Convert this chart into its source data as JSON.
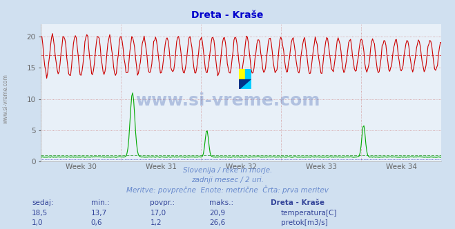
{
  "title": "Dreta - Kraše",
  "title_color": "#0000cc",
  "bg_color": "#d0e0f0",
  "plot_bg_color": "#e8f0f8",
  "grid_color": "#d09090",
  "temp_color": "#cc0000",
  "flow_color": "#00aa00",
  "avg_temp_color": "#cc0000",
  "avg_flow_color": "#008800",
  "flow_dot_color": "#0000aa",
  "ylim": [
    0,
    22
  ],
  "xlim": [
    0,
    35
  ],
  "yticks": [
    0,
    5,
    10,
    15,
    20
  ],
  "week_ticks": [
    3.5,
    10.5,
    17.5,
    24.5,
    31.5
  ],
  "week_labels": [
    "Week 30",
    "Week 31",
    "Week 32",
    "Week 33",
    "Week 34"
  ],
  "week_grid_positions": [
    0,
    7,
    14,
    21,
    28,
    35
  ],
  "temp_min": 13.7,
  "temp_max": 20.9,
  "temp_avg": 17.0,
  "flow_min": 0.6,
  "flow_max": 26.6,
  "flow_avg": 1.2,
  "flow_scale": 0.826,
  "watermark_text": "www.si-vreme.com",
  "watermark_color": "#3355aa",
  "watermark_alpha": 0.3,
  "watermark_size": 18,
  "logo_colors": [
    "#ffff00",
    "#00ccff",
    "#003388"
  ],
  "footer_color": "#6688cc",
  "footer_line1": "Slovenija / reke in morje.",
  "footer_line2": "zadnji mesec / 2 uri.",
  "footer_line3": "Meritve: povprečne  Enote: metrične  Črta: prva meritev",
  "table_header": [
    "sedaj:",
    "min.:",
    "povpr.:",
    "maks.:",
    "Dreta - Kraše"
  ],
  "table_row1": [
    "18,5",
    "13,7",
    "17,0",
    "20,9"
  ],
  "table_row2": [
    "1,0",
    "0,6",
    "1,2",
    "26,6"
  ],
  "table_color": "#334499",
  "legend_temp": "temperatura[C]",
  "legend_flow": "pretok[m3/s]"
}
